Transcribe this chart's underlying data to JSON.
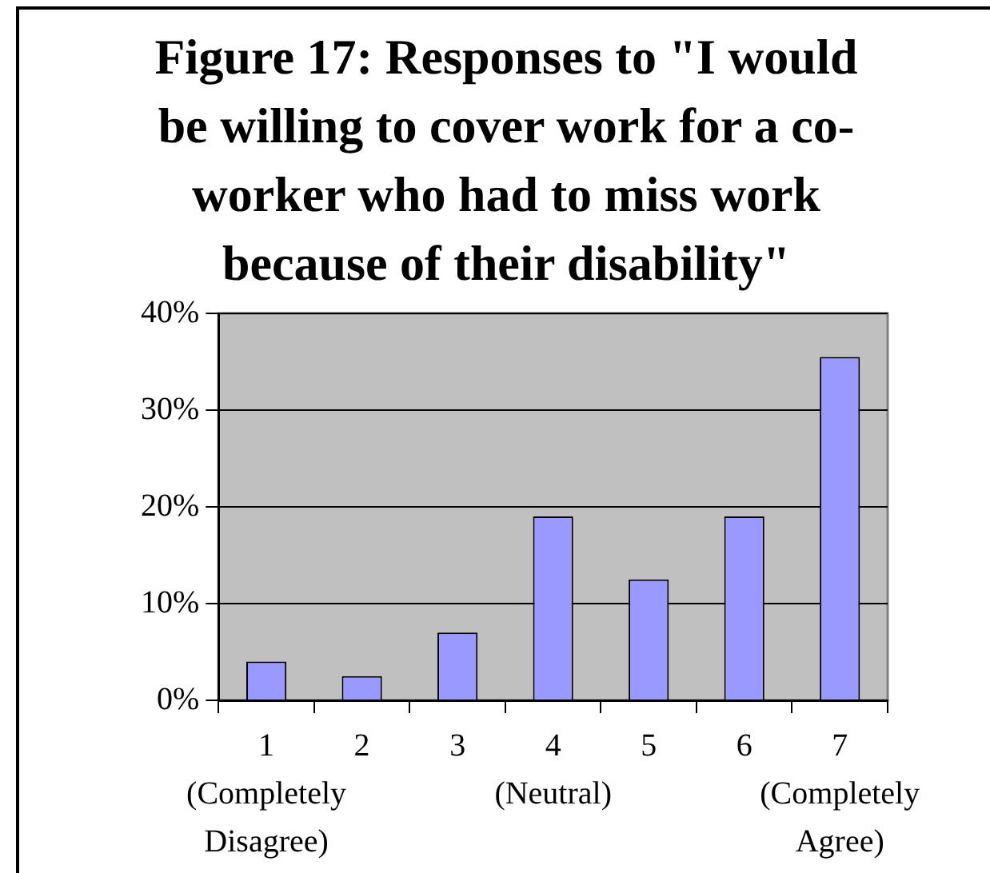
{
  "chart_data": {
    "type": "bar",
    "title": "Figure 17: Responses to \"I would be willing to cover work for a co-worker who had to miss work because of their disability\"",
    "categories": [
      "1 (Completely Disagree)",
      "2",
      "3",
      "4 (Neutral)",
      "5",
      "6",
      "7 (Completely Agree)"
    ],
    "values": [
      4,
      2.5,
      7,
      19,
      12.5,
      19,
      35.5
    ],
    "color": "#9999ff",
    "ylim": [
      0,
      40
    ],
    "yticks": [
      {
        "value": 0,
        "label": "0%"
      },
      {
        "value": 10,
        "label": "10%"
      },
      {
        "value": 20,
        "label": "20%"
      },
      {
        "value": 30,
        "label": "30%"
      },
      {
        "value": 40,
        "label": "40%"
      }
    ],
    "grid": "y"
  }
}
